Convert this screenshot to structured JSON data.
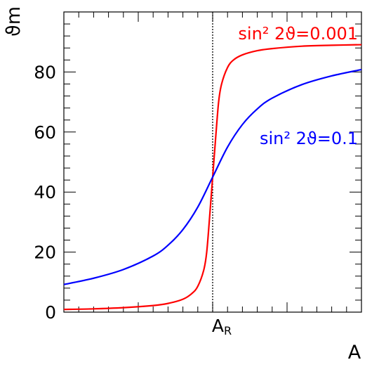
{
  "chart_data": {
    "type": "line",
    "xlabel": "A",
    "ylabel": "ϑm",
    "ylim": [
      0,
      100
    ],
    "xlim": [
      -5,
      5
    ],
    "yticks": [
      0,
      20,
      40,
      60,
      80
    ],
    "x_marker": {
      "label": "AR",
      "x": 0,
      "style": "dotted"
    },
    "grid": false,
    "series": [
      {
        "name": "sin² 2ϑ=0.001",
        "color": "#ff0000",
        "x": [
          -5,
          -4,
          -3,
          -2,
          -1.5,
          -1,
          -0.7,
          -0.5,
          -0.3,
          -0.2,
          -0.1,
          0,
          0.1,
          0.2,
          0.3,
          0.5,
          0.7,
          1,
          1.5,
          2,
          3,
          4,
          5
        ],
        "y": [
          0.9,
          1.1,
          1.5,
          2.2,
          2.9,
          4.3,
          6.2,
          8.6,
          14,
          20,
          32,
          45,
          58,
          70,
          76,
          81.5,
          84,
          85.7,
          87.1,
          87.8,
          88.6,
          88.9,
          89.1
        ]
      },
      {
        "name": "sin² 2ϑ=0.1",
        "color": "#0000ff",
        "x": [
          -5,
          -4,
          -3,
          -2,
          -1.5,
          -1,
          -0.5,
          0,
          0.5,
          1,
          1.5,
          2,
          3,
          4,
          5
        ],
        "y": [
          9.2,
          11.3,
          14.2,
          18.7,
          22.3,
          27.5,
          35,
          45,
          55,
          62.5,
          67.7,
          71.3,
          75.8,
          78.7,
          80.8
        ]
      }
    ],
    "annotations": [
      {
        "text": "sin² 2ϑ=0.001",
        "color": "#ff0000",
        "position": "top-right"
      },
      {
        "text": "sin² 2ϑ=0.1",
        "color": "#0000ff",
        "position": "right"
      }
    ]
  }
}
